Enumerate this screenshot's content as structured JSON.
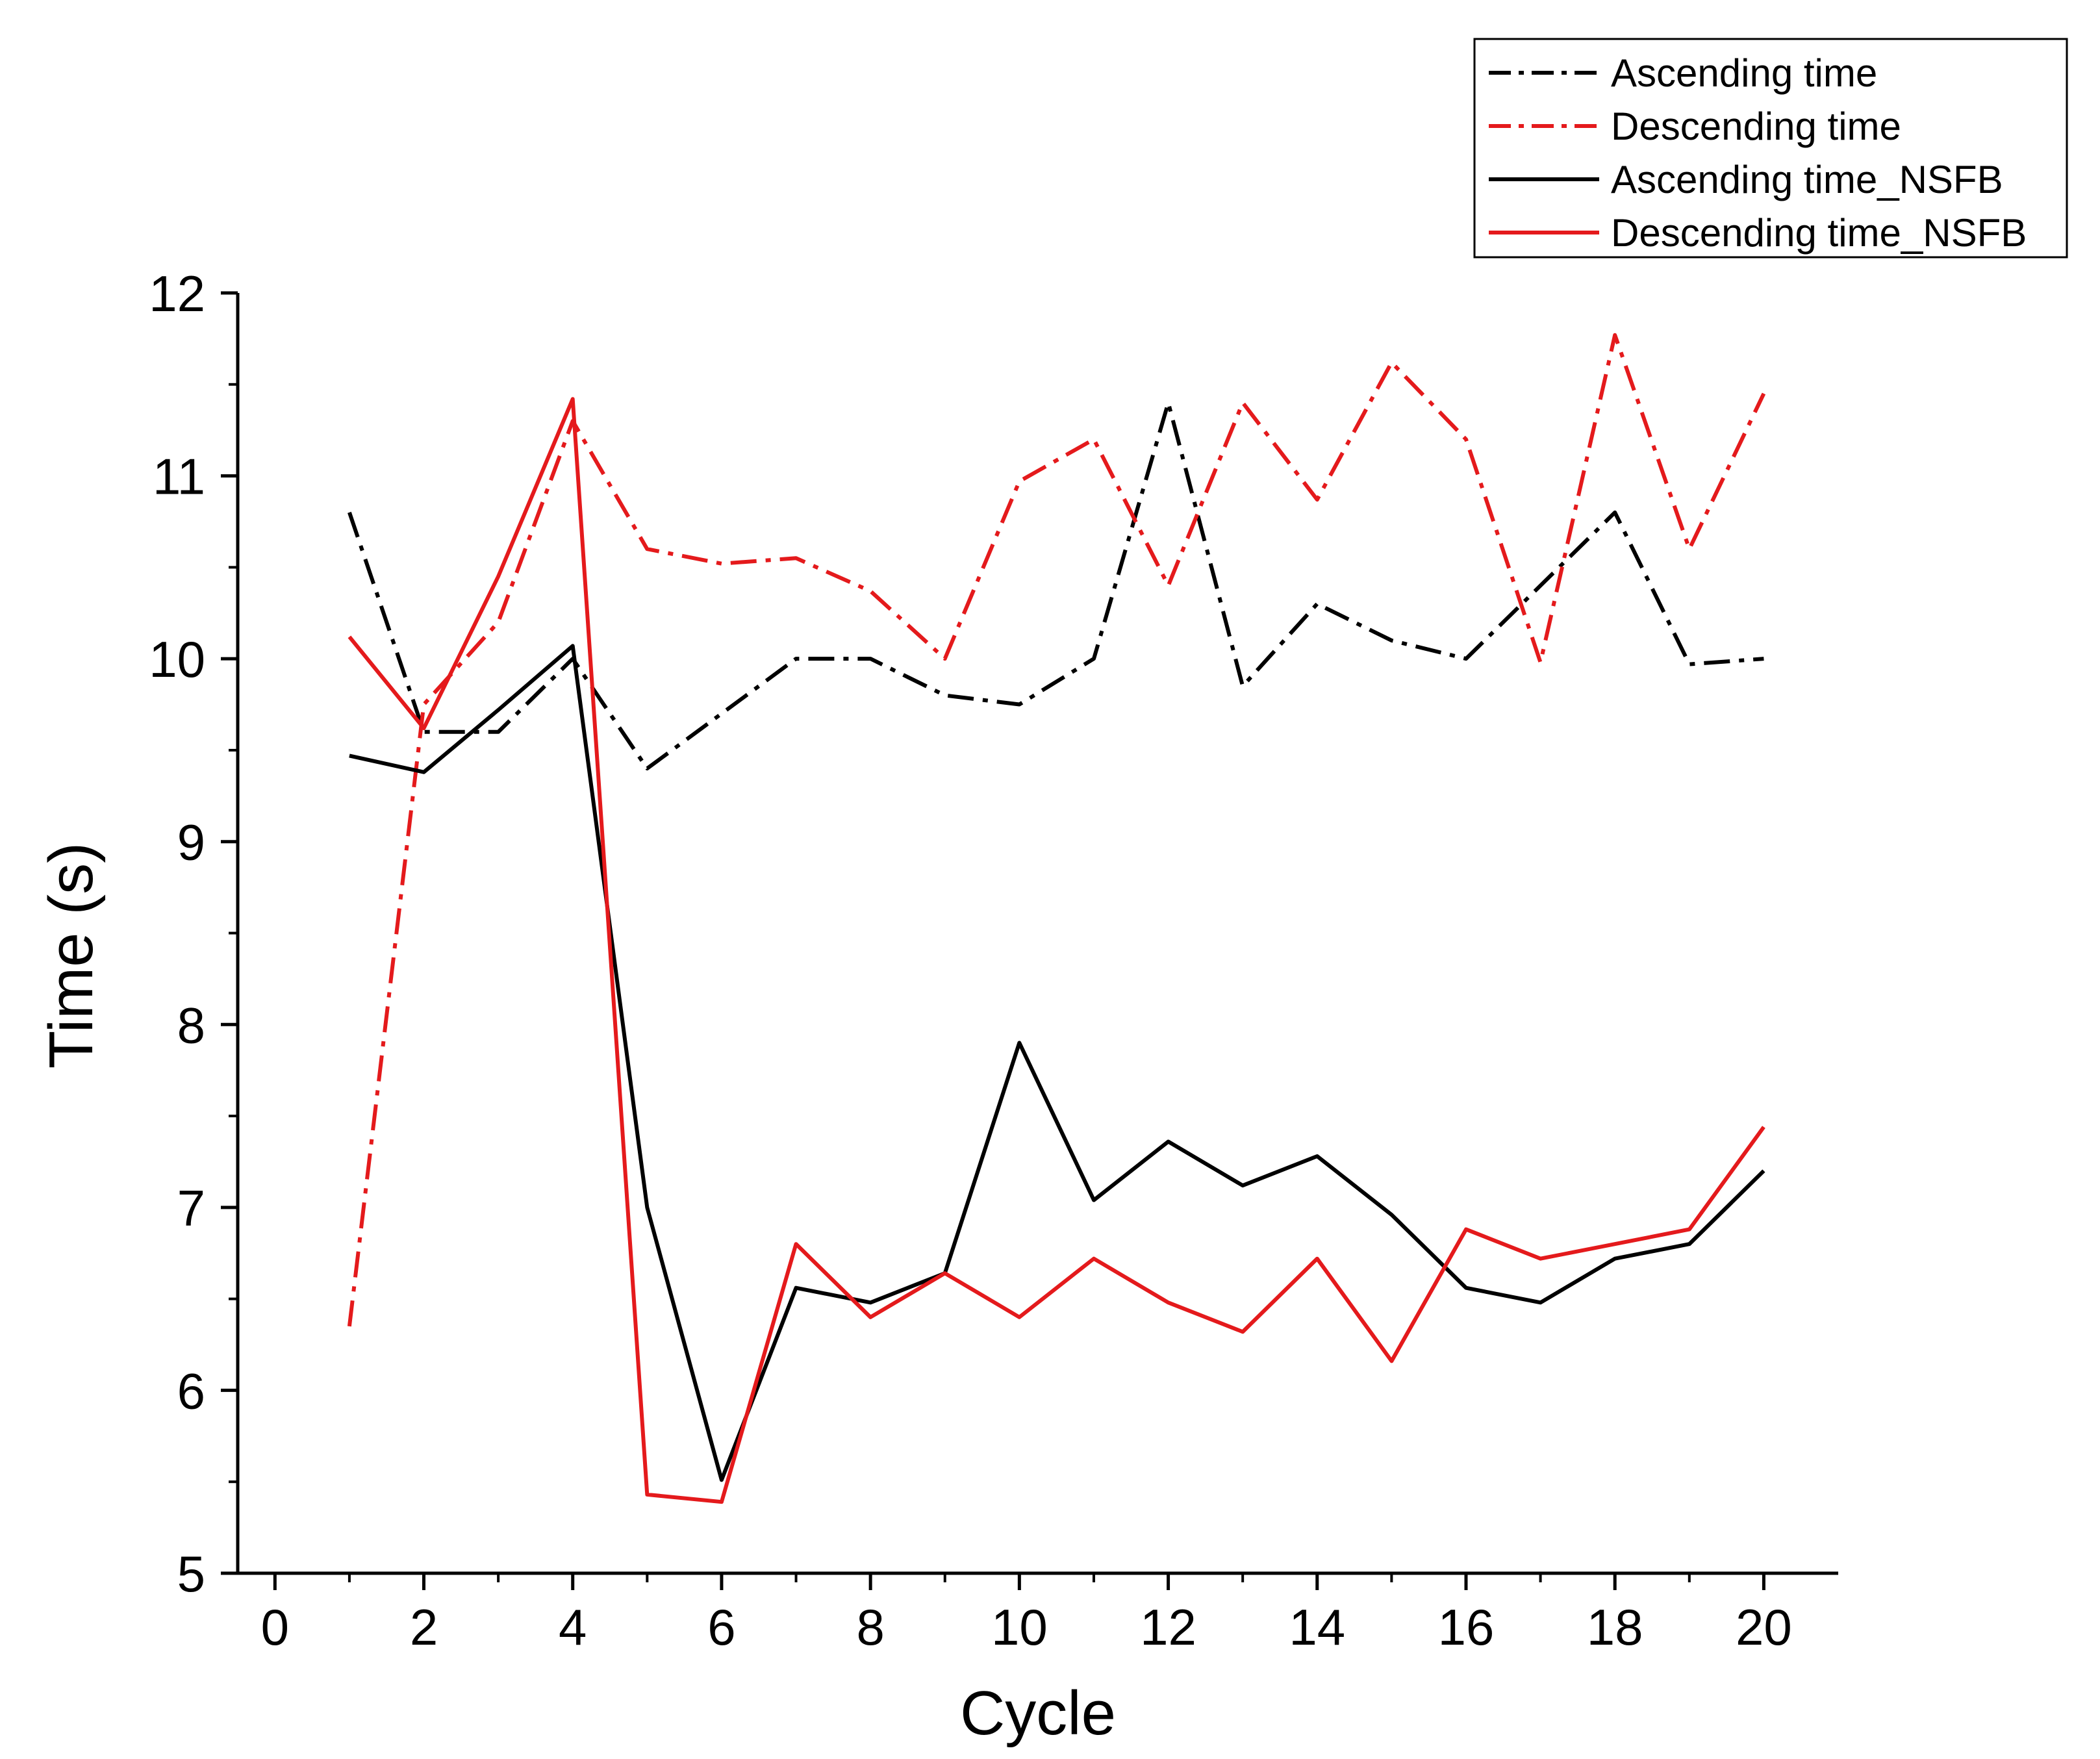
{
  "chart_data": {
    "type": "line",
    "title": "",
    "xlabel": "Cycle",
    "ylabel": "Time (s)",
    "xlim": [
      -0.5,
      21
    ],
    "ylim": [
      5,
      12
    ],
    "x_ticks": [
      0,
      2,
      4,
      6,
      8,
      10,
      12,
      14,
      16,
      18,
      20
    ],
    "y_ticks": [
      5,
      6,
      7,
      8,
      9,
      10,
      11,
      12
    ],
    "grid": false,
    "legend_position": "top-right",
    "series": [
      {
        "name": "Ascending time",
        "color": "#000000",
        "style": "dash-dot",
        "x": [
          1,
          2,
          3,
          4,
          5,
          6,
          7,
          8,
          9,
          10,
          11,
          12,
          13,
          14,
          15,
          16,
          17,
          18,
          19,
          20
        ],
        "values": [
          10.8,
          9.6,
          9.6,
          10.0,
          9.4,
          9.7,
          10.0,
          10.0,
          9.8,
          9.75,
          10.0,
          11.4,
          9.85,
          10.3,
          10.1,
          10.0,
          10.4,
          10.8,
          9.97,
          10.0
        ]
      },
      {
        "name": "Descending time",
        "color": "#e41a1c",
        "style": "dash-dot",
        "x": [
          1,
          2,
          3,
          4,
          5,
          6,
          7,
          8,
          9,
          10,
          11,
          12,
          13,
          14,
          15,
          16,
          17,
          18,
          19,
          20
        ],
        "values": [
          6.35,
          9.75,
          10.2,
          11.3,
          10.6,
          10.52,
          10.55,
          10.37,
          10.0,
          10.97,
          11.2,
          10.4,
          11.4,
          10.87,
          11.62,
          11.2,
          9.98,
          11.77,
          10.6,
          11.45
        ]
      },
      {
        "name": "Ascending time_NSFB",
        "color": "#000000",
        "style": "solid",
        "x": [
          1,
          2,
          3,
          4,
          5,
          6,
          7,
          8,
          9,
          10,
          11,
          12,
          13,
          14,
          15,
          16,
          17,
          18,
          19,
          20
        ],
        "values": [
          9.47,
          9.38,
          9.72,
          10.07,
          7.0,
          5.51,
          6.56,
          6.48,
          6.64,
          7.9,
          7.04,
          7.36,
          7.12,
          7.28,
          6.96,
          6.56,
          6.48,
          6.72,
          6.8,
          7.2
        ]
      },
      {
        "name": "Descending time_NSFB",
        "color": "#e41a1c",
        "style": "solid",
        "x": [
          1,
          2,
          3,
          4,
          5,
          6,
          7,
          8,
          9,
          10,
          11,
          12,
          13,
          14,
          15,
          16,
          17,
          18,
          19,
          20
        ],
        "values": [
          10.12,
          9.62,
          10.45,
          11.42,
          5.43,
          5.39,
          6.8,
          6.4,
          6.64,
          6.4,
          6.72,
          6.48,
          6.32,
          6.72,
          6.16,
          6.88,
          6.72,
          6.8,
          6.88,
          7.44
        ]
      }
    ]
  }
}
